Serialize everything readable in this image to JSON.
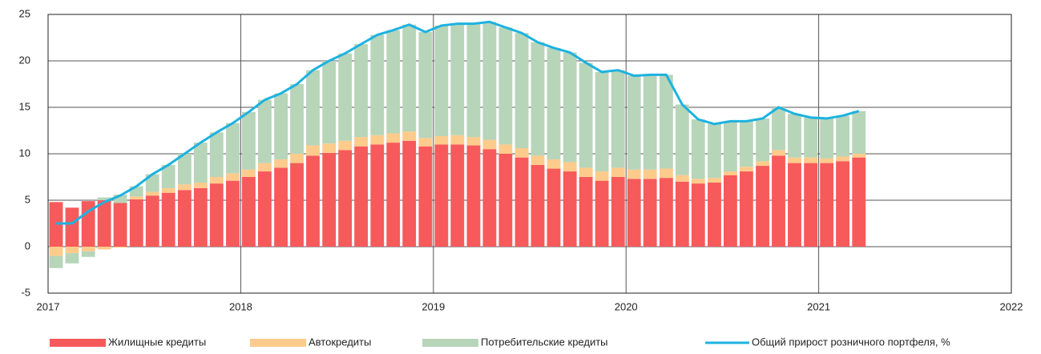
{
  "chart_data": {
    "type": "stacked-bar-line",
    "x": [
      2017,
      2017.083,
      2017.167,
      2017.25,
      2017.333,
      2017.417,
      2017.5,
      2017.583,
      2017.667,
      2017.75,
      2017.833,
      2017.917,
      2018,
      2018.083,
      2018.167,
      2018.25,
      2018.333,
      2018.417,
      2018.5,
      2018.583,
      2018.667,
      2018.75,
      2018.833,
      2018.917,
      2019,
      2019.083,
      2019.167,
      2019.25,
      2019.333,
      2019.417,
      2019.5,
      2019.583,
      2019.667,
      2019.75,
      2019.833,
      2019.917,
      2020,
      2020.083,
      2020.167,
      2020.25,
      2020.333,
      2020.417,
      2020.5,
      2020.583,
      2020.667,
      2020.75,
      2020.833,
      2020.917,
      2021,
      2021.083,
      2021.167
    ],
    "series": [
      {
        "name": "Жилищные кредиты",
        "color": "#f65a5a",
        "values": [
          4.8,
          4.2,
          4.9,
          5.0,
          4.7,
          5.1,
          5.5,
          5.8,
          6.1,
          6.3,
          6.8,
          7.1,
          7.5,
          8.1,
          8.5,
          9.0,
          9.8,
          10.1,
          10.4,
          10.8,
          11.0,
          11.2,
          11.4,
          10.8,
          11.0,
          11.0,
          10.9,
          10.5,
          10.0,
          9.6,
          8.8,
          8.4,
          8.1,
          7.5,
          7.1,
          7.5,
          7.3,
          7.3,
          7.4,
          7.0,
          6.8,
          6.9,
          7.7,
          8.1,
          8.7,
          9.8,
          9.0,
          9.0,
          9.0,
          9.2,
          9.6
        ]
      },
      {
        "name": "Автокредиты",
        "color": "#fdcb8b",
        "values": [
          -1.0,
          -0.7,
          -0.5,
          -0.3,
          -0.1,
          0.3,
          0.4,
          0.5,
          0.6,
          0.6,
          0.7,
          0.8,
          0.8,
          0.9,
          0.9,
          1.0,
          1.1,
          1.0,
          1.0,
          1.0,
          1.0,
          1.0,
          1.0,
          0.9,
          0.9,
          1.0,
          0.9,
          1.0,
          1.0,
          1.0,
          1.0,
          1.0,
          1.0,
          1.0,
          1.0,
          1.0,
          1.0,
          1.0,
          1.0,
          0.7,
          0.5,
          0.5,
          0.4,
          0.5,
          0.5,
          0.6,
          0.6,
          0.6,
          0.5,
          0.5,
          0.4
        ]
      },
      {
        "name": "Потребительские кредиты",
        "color": "#b7d5b9",
        "values": [
          -1.3,
          -1.1,
          -0.6,
          0.3,
          0.9,
          1.1,
          1.9,
          2.5,
          3.3,
          4.3,
          4.8,
          5.4,
          6.2,
          6.8,
          7.1,
          7.5,
          8.1,
          8.9,
          9.4,
          10.0,
          10.8,
          11.1,
          11.5,
          11.4,
          11.9,
          12.0,
          12.2,
          12.7,
          12.6,
          12.4,
          12.2,
          12.0,
          11.8,
          11.3,
          10.7,
          10.5,
          10.1,
          10.2,
          10.1,
          7.6,
          6.4,
          5.8,
          5.4,
          4.9,
          4.6,
          4.6,
          4.7,
          4.3,
          4.3,
          4.4,
          4.6
        ]
      },
      {
        "name": "Общий прирост розничного портфеля, %",
        "color": "#1db2e0",
        "type": "line",
        "values": [
          2.5,
          2.5,
          3.8,
          4.8,
          5.5,
          6.5,
          7.8,
          8.8,
          10.0,
          11.2,
          12.3,
          13.3,
          14.5,
          15.8,
          16.5,
          17.5,
          19.0,
          20.0,
          20.8,
          21.8,
          22.8,
          23.3,
          23.9,
          23.1,
          23.8,
          24.0,
          24.0,
          24.2,
          23.6,
          23.0,
          22.0,
          21.4,
          20.9,
          19.8,
          18.8,
          19.0,
          18.4,
          18.5,
          18.5,
          15.3,
          13.7,
          13.2,
          13.5,
          13.5,
          13.8,
          15.0,
          14.3,
          13.9,
          13.8,
          14.1,
          14.6
        ]
      }
    ],
    "xlim": [
      2017,
      2022
    ],
    "xticks": [
      2017,
      2018,
      2019,
      2020,
      2021,
      2022
    ],
    "ylim": [
      -5,
      25
    ],
    "yticks": [
      -5,
      0,
      5,
      10,
      15,
      20,
      25
    ],
    "grid": true,
    "legend": "bottom"
  }
}
